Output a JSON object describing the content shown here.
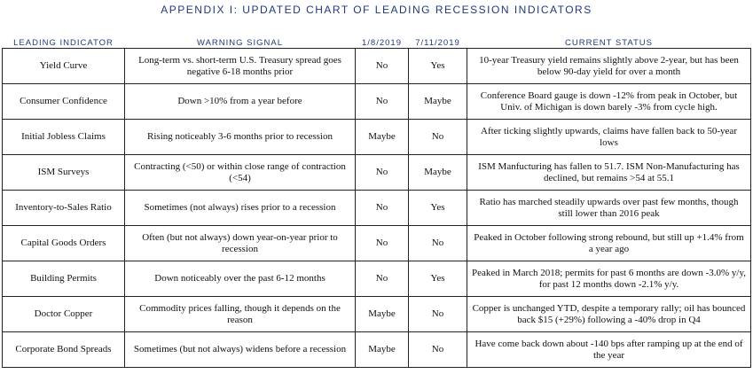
{
  "header": {
    "title": "APPENDIX I: UPDATED CHART OF LEADING RECESSION INDICATORS"
  },
  "table": {
    "columns": [
      "LEADING INDICATOR",
      "WARNING SIGNAL",
      "1/8/2019",
      "7/11/2019",
      "CURRENT STATUS"
    ],
    "rows": [
      [
        "Yield Curve",
        "Long-term vs. short-term U.S. Treasury spread goes negative 6-18 months prior",
        "No",
        "Yes",
        "10-year Treasury yield remains slightly above 2-year, but has been below 90-day yield for over a month"
      ],
      [
        "Consumer Confidence",
        "Down >10% from a year before",
        "No",
        "Maybe",
        "Conference Board gauge is down -12% from peak in October, but Univ. of Michigan is down barely -3% from cycle high."
      ],
      [
        "Initial Jobless Claims",
        "Rising noticeably 3-6 months prior to recession",
        "Maybe",
        "No",
        "After ticking slightly upwards, claims have fallen back to 50-year lows"
      ],
      [
        "ISM Surveys",
        "Contracting (<50) or within close range of contraction (<54)",
        "No",
        "Maybe",
        "ISM Manfucturing has fallen to 51.7. ISM Non-Manufacturing has declined, but remains >54 at 55.1"
      ],
      [
        "Inventory-to-Sales Ratio",
        "Sometimes (not always) rises prior to a recession",
        "No",
        "Yes",
        "Ratio has marched steadily upwards over past few months, though still lower than 2016 peak"
      ],
      [
        "Capital Goods Orders",
        "Often (but not always) down year-on-year prior to recession",
        "No",
        "No",
        "Peaked in October following strong rebound, but still up +1.4% from a year ago"
      ],
      [
        "Building Permits",
        "Down noticeably over the past 6-12 months",
        "No",
        "Yes",
        "Peaked in March 2018; permits for past 6 months are down -3.0% y/y, for past 12 months down -2.1% y/y."
      ],
      [
        "Doctor Copper",
        "Commodity prices falling, though it depends on the reason",
        "Maybe",
        "No",
        "Copper is unchanged YTD, despite a temporary rally; oil has bounced back $15 (+29%) following a -40% drop in Q4"
      ],
      [
        "Corporate Bond Spreads",
        "Sometimes (but not always) widens before a recession",
        "Maybe",
        "No",
        "Have come back down about -140 bps after ramping up at the end of the year"
      ]
    ]
  }
}
